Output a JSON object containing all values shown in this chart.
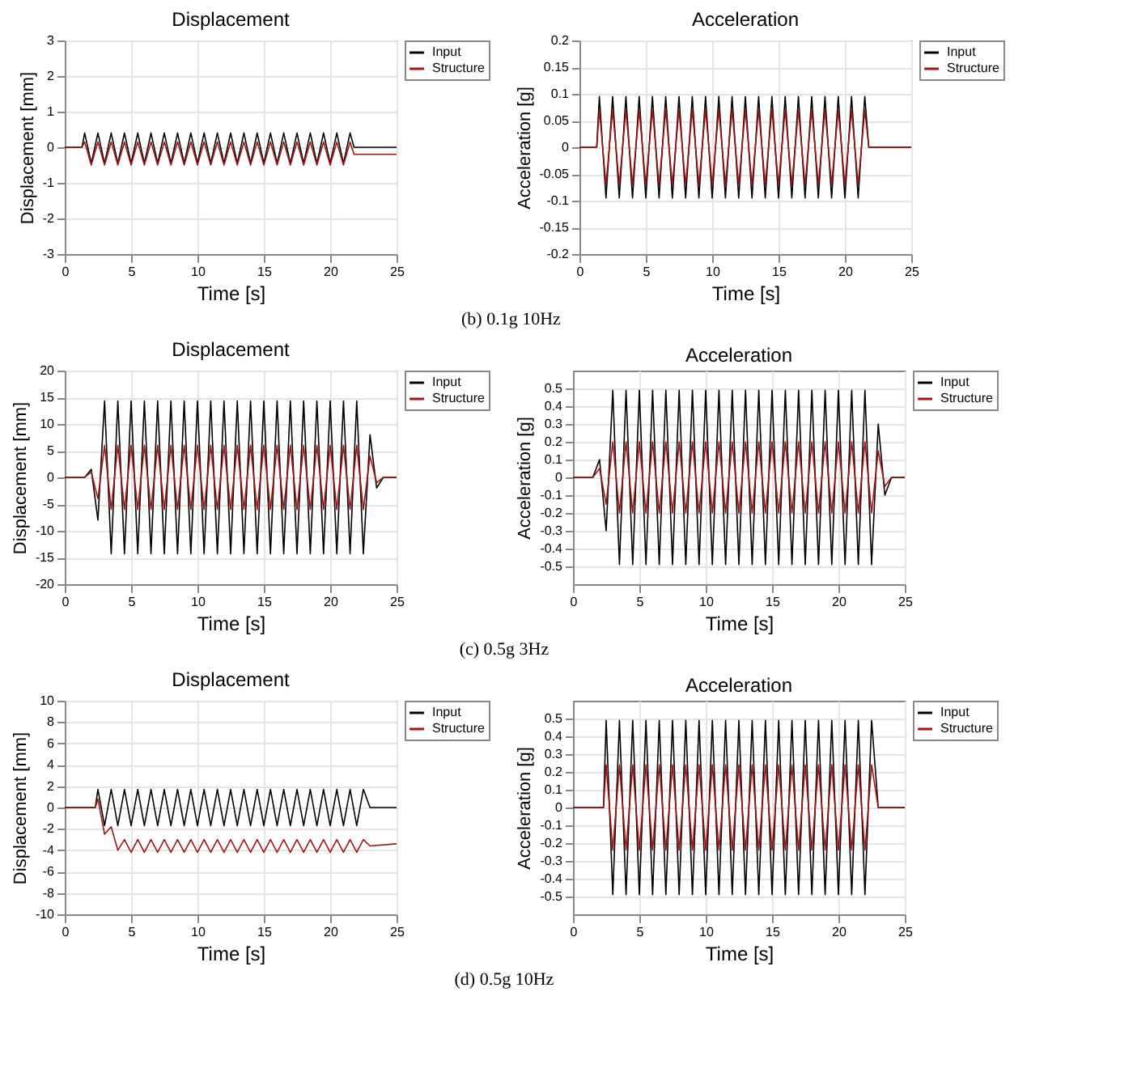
{
  "chart_data": [
    {
      "type": "line",
      "title": "Displacement",
      "xlabel": "Time [s]",
      "ylabel": "Displacement [mm]",
      "xlim": [
        0,
        25
      ],
      "xticks": [
        0,
        5,
        10,
        15,
        20,
        25
      ],
      "ylim": [
        -3,
        3
      ],
      "yticks": [
        -3,
        -2,
        -1,
        0,
        1,
        2,
        3
      ],
      "grid": true,
      "legend": "top right",
      "annotations": [
        "(b) 0.1g 10Hz"
      ],
      "x": [
        0,
        1.3,
        1.5,
        2,
        2.5,
        3,
        3.5,
        4,
        4.5,
        5,
        5.5,
        6,
        6.5,
        7,
        7.5,
        8,
        8.5,
        9,
        9.5,
        10,
        10.5,
        11,
        11.5,
        12,
        12.5,
        13,
        13.5,
        14,
        14.5,
        15,
        15.5,
        16,
        16.5,
        17,
        17.5,
        18,
        18.5,
        19,
        19.5,
        20,
        20.5,
        21,
        21.5,
        21.8,
        25
      ],
      "series": [
        {
          "name": "Input",
          "color": "#000000",
          "values": [
            0,
            0,
            0.4,
            -0.45,
            0.4,
            -0.45,
            0.4,
            -0.45,
            0.4,
            -0.45,
            0.4,
            -0.45,
            0.4,
            -0.45,
            0.4,
            -0.45,
            0.4,
            -0.45,
            0.4,
            -0.45,
            0.4,
            -0.45,
            0.4,
            -0.45,
            0.4,
            -0.45,
            0.4,
            -0.45,
            0.4,
            -0.45,
            0.4,
            -0.45,
            0.4,
            -0.45,
            0.4,
            -0.45,
            0.4,
            -0.45,
            0.4,
            -0.45,
            0.4,
            -0.45,
            0.4,
            0,
            0
          ]
        },
        {
          "name": "Structure",
          "color": "#a31515",
          "values": [
            0,
            0,
            0.15,
            -0.5,
            0.15,
            -0.5,
            0.15,
            -0.5,
            0.15,
            -0.5,
            0.15,
            -0.5,
            0.15,
            -0.5,
            0.15,
            -0.5,
            0.15,
            -0.5,
            0.15,
            -0.5,
            0.15,
            -0.5,
            0.15,
            -0.5,
            0.15,
            -0.5,
            0.15,
            -0.5,
            0.15,
            -0.5,
            0.15,
            -0.5,
            0.15,
            -0.5,
            0.15,
            -0.5,
            0.15,
            -0.5,
            0.15,
            -0.5,
            0.15,
            -0.5,
            0.15,
            -0.2,
            -0.2
          ]
        }
      ]
    },
    {
      "type": "line",
      "title": "Acceleration",
      "xlabel": "Time [s]",
      "ylabel": "Acceleration [g]",
      "xlim": [
        0,
        25
      ],
      "xticks": [
        0,
        5,
        10,
        15,
        20,
        25
      ],
      "ylim": [
        -0.2,
        0.2
      ],
      "yticks": [
        -0.2,
        -0.15,
        -0.1,
        -0.05,
        0,
        0.05,
        0.1,
        0.15,
        0.2
      ],
      "grid": true,
      "legend": "top right",
      "x": [
        0,
        1.3,
        1.5,
        2,
        2.5,
        3,
        3.5,
        4,
        4.5,
        5,
        5.5,
        6,
        6.5,
        7,
        7.5,
        8,
        8.5,
        9,
        9.5,
        10,
        10.5,
        11,
        11.5,
        12,
        12.5,
        13,
        13.5,
        14,
        14.5,
        15,
        15.5,
        16,
        16.5,
        17,
        17.5,
        18,
        18.5,
        19,
        19.5,
        20,
        20.5,
        21,
        21.5,
        21.8,
        25
      ],
      "series": [
        {
          "name": "Input",
          "color": "#000000",
          "values": [
            0,
            0,
            0.095,
            -0.095,
            0.095,
            -0.095,
            0.095,
            -0.095,
            0.095,
            -0.095,
            0.095,
            -0.095,
            0.095,
            -0.095,
            0.095,
            -0.095,
            0.095,
            -0.095,
            0.095,
            -0.095,
            0.095,
            -0.095,
            0.095,
            -0.095,
            0.095,
            -0.095,
            0.095,
            -0.095,
            0.095,
            -0.095,
            0.095,
            -0.095,
            0.095,
            -0.095,
            0.095,
            -0.095,
            0.095,
            -0.095,
            0.095,
            -0.095,
            0.095,
            -0.095,
            0.095,
            0,
            0
          ]
        },
        {
          "name": "Structure",
          "color": "#a31515",
          "values": [
            0,
            0,
            0.07,
            -0.07,
            0.07,
            -0.07,
            0.07,
            -0.07,
            0.07,
            -0.07,
            0.07,
            -0.07,
            0.07,
            -0.07,
            0.07,
            -0.07,
            0.07,
            -0.07,
            0.07,
            -0.07,
            0.07,
            -0.07,
            0.07,
            -0.07,
            0.07,
            -0.07,
            0.07,
            -0.07,
            0.07,
            -0.07,
            0.07,
            -0.07,
            0.07,
            -0.07,
            0.07,
            -0.07,
            0.07,
            -0.07,
            0.07,
            -0.07,
            0.07,
            -0.07,
            0.07,
            0,
            0
          ]
        }
      ]
    },
    {
      "type": "line",
      "title": "Displacement",
      "xlabel": "Time [s]",
      "ylabel": "Displacement [mm]",
      "xlim": [
        0,
        25
      ],
      "xticks": [
        0,
        5,
        10,
        15,
        20,
        25
      ],
      "ylim": [
        -20,
        20
      ],
      "yticks": [
        -20,
        -15,
        -10,
        -5,
        0,
        5,
        10,
        15,
        20
      ],
      "grid": true,
      "legend": "top right",
      "annotations": [
        "(c) 0.5g 3Hz"
      ],
      "x": [
        0,
        1.5,
        2,
        2.5,
        3,
        3.5,
        4,
        4.5,
        5,
        5.5,
        6,
        6.5,
        7,
        7.5,
        8,
        8.5,
        9,
        9.5,
        10,
        10.5,
        11,
        11.5,
        12,
        12.5,
        13,
        13.5,
        14,
        14.5,
        15,
        15.5,
        16,
        16.5,
        17,
        17.5,
        18,
        18.5,
        19,
        19.5,
        20,
        20.5,
        21,
        21.5,
        22,
        22.5,
        23,
        23.5,
        24,
        25
      ],
      "series": [
        {
          "name": "Input",
          "color": "#000000",
          "values": [
            0,
            0,
            1.5,
            -8,
            14.3,
            -14.3,
            14.3,
            -14.3,
            14.3,
            -14.3,
            14.3,
            -14.3,
            14.3,
            -14.3,
            14.3,
            -14.3,
            14.3,
            -14.3,
            14.3,
            -14.3,
            14.3,
            -14.3,
            14.3,
            -14.3,
            14.3,
            -14.3,
            14.3,
            -14.3,
            14.3,
            -14.3,
            14.3,
            -14.3,
            14.3,
            -14.3,
            14.3,
            -14.3,
            14.3,
            -14.3,
            14.3,
            -14.3,
            14.3,
            -14.3,
            14.3,
            -14.3,
            8,
            -2,
            0,
            0
          ]
        },
        {
          "name": "Structure",
          "color": "#a31515",
          "values": [
            0,
            0,
            1,
            -4,
            6,
            -6,
            6,
            -6,
            6,
            -6,
            6,
            -6,
            6,
            -6,
            6,
            -6,
            6,
            -6,
            6,
            -6,
            6,
            -6,
            6,
            -6,
            6,
            -6,
            6,
            -6,
            6,
            -6,
            6,
            -6,
            6,
            -6,
            6,
            -6,
            6,
            -6,
            6,
            -6,
            6,
            -6,
            6,
            -6,
            4,
            -1,
            0,
            0
          ]
        }
      ]
    },
    {
      "type": "line",
      "title": "Acceleration",
      "xlabel": "Time [s]",
      "ylabel": "Acceleration [g]",
      "xlim": [
        0,
        25
      ],
      "xticks": [
        0,
        5,
        10,
        15,
        20,
        25
      ],
      "ylim": [
        -0.6,
        0.6
      ],
      "yticks": [
        -0.5,
        -0.4,
        -0.3,
        -0.2,
        -0.1,
        0,
        0.1,
        0.2,
        0.3,
        0.4,
        0.5
      ],
      "grid": true,
      "legend": "top right",
      "x": [
        0,
        1.5,
        2,
        2.5,
        3,
        3.5,
        4,
        4.5,
        5,
        5.5,
        6,
        6.5,
        7,
        7.5,
        8,
        8.5,
        9,
        9.5,
        10,
        10.5,
        11,
        11.5,
        12,
        12.5,
        13,
        13.5,
        14,
        14.5,
        15,
        15.5,
        16,
        16.5,
        17,
        17.5,
        18,
        18.5,
        19,
        19.5,
        20,
        20.5,
        21,
        21.5,
        22,
        22.5,
        23,
        23.5,
        24,
        25
      ],
      "series": [
        {
          "name": "Input",
          "color": "#000000",
          "values": [
            0,
            0,
            0.1,
            -0.3,
            0.49,
            -0.49,
            0.49,
            -0.49,
            0.49,
            -0.49,
            0.49,
            -0.49,
            0.49,
            -0.49,
            0.49,
            -0.49,
            0.49,
            -0.49,
            0.49,
            -0.49,
            0.49,
            -0.49,
            0.49,
            -0.49,
            0.49,
            -0.49,
            0.49,
            -0.49,
            0.49,
            -0.49,
            0.49,
            -0.49,
            0.49,
            -0.49,
            0.49,
            -0.49,
            0.49,
            -0.49,
            0.49,
            -0.49,
            0.49,
            -0.49,
            0.49,
            -0.49,
            0.3,
            -0.1,
            0,
            0
          ]
        },
        {
          "name": "Structure",
          "color": "#a31515",
          "values": [
            0,
            0,
            0.05,
            -0.15,
            0.2,
            -0.2,
            0.2,
            -0.2,
            0.2,
            -0.2,
            0.2,
            -0.2,
            0.2,
            -0.2,
            0.2,
            -0.2,
            0.2,
            -0.2,
            0.2,
            -0.2,
            0.2,
            -0.2,
            0.2,
            -0.2,
            0.2,
            -0.2,
            0.2,
            -0.2,
            0.2,
            -0.2,
            0.2,
            -0.2,
            0.2,
            -0.2,
            0.2,
            -0.2,
            0.2,
            -0.2,
            0.2,
            -0.2,
            0.2,
            -0.2,
            0.2,
            -0.2,
            0.15,
            -0.05,
            0,
            0
          ]
        }
      ]
    },
    {
      "type": "line",
      "title": "Displacement",
      "xlabel": "Time [s]",
      "ylabel": "Displacement [mm]",
      "xlim": [
        0,
        25
      ],
      "xticks": [
        0,
        5,
        10,
        15,
        20,
        25
      ],
      "ylim": [
        -10,
        10
      ],
      "yticks": [
        -10,
        -8,
        -6,
        -4,
        -2,
        0,
        2,
        4,
        6,
        8,
        10
      ],
      "grid": true,
      "legend": "top right",
      "annotations": [
        "(d) 0.5g 10Hz"
      ],
      "x": [
        0,
        2.3,
        2.5,
        3,
        3.5,
        4,
        4.5,
        5,
        5.5,
        6,
        6.5,
        7,
        7.5,
        8,
        8.5,
        9,
        9.5,
        10,
        10.5,
        11,
        11.5,
        12,
        12.5,
        13,
        13.5,
        14,
        14.5,
        15,
        15.5,
        16,
        16.5,
        17,
        17.5,
        18,
        18.5,
        19,
        19.5,
        20,
        20.5,
        21,
        21.5,
        22,
        22.5,
        23,
        25
      ],
      "series": [
        {
          "name": "Input",
          "color": "#000000",
          "values": [
            0,
            0,
            1.7,
            -1.7,
            1.7,
            -1.7,
            1.7,
            -1.7,
            1.7,
            -1.7,
            1.7,
            -1.7,
            1.7,
            -1.7,
            1.7,
            -1.7,
            1.7,
            -1.7,
            1.7,
            -1.7,
            1.7,
            -1.7,
            1.7,
            -1.7,
            1.7,
            -1.7,
            1.7,
            -1.7,
            1.7,
            -1.7,
            1.7,
            -1.7,
            1.7,
            -1.7,
            1.7,
            -1.7,
            1.7,
            -1.7,
            1.7,
            -1.7,
            1.7,
            -1.7,
            1.7,
            0,
            0
          ]
        },
        {
          "name": "Structure",
          "color": "#a31515",
          "values": [
            0,
            0,
            0.8,
            -2.5,
            -1.8,
            -4,
            -3,
            -4.2,
            -3,
            -4.2,
            -3,
            -4.2,
            -3,
            -4.2,
            -3,
            -4.2,
            -3,
            -4.2,
            -3,
            -4.2,
            -3,
            -4.2,
            -3,
            -4.2,
            -3,
            -4.2,
            -3,
            -4.2,
            -3,
            -4.2,
            -3,
            -4.2,
            -3,
            -4.2,
            -3,
            -4.2,
            -3,
            -4.2,
            -3,
            -4.2,
            -3,
            -4.2,
            -3,
            -3.6,
            -3.4
          ]
        }
      ]
    },
    {
      "type": "line",
      "title": "Acceleration",
      "xlabel": "Time [s]",
      "ylabel": "Acceleration [g]",
      "xlim": [
        0,
        25
      ],
      "xticks": [
        0,
        5,
        10,
        15,
        20,
        25
      ],
      "ylim": [
        -0.6,
        0.6
      ],
      "yticks": [
        -0.5,
        -0.4,
        -0.3,
        -0.2,
        -0.1,
        0,
        0.1,
        0.2,
        0.3,
        0.4,
        0.5
      ],
      "grid": true,
      "legend": "top right",
      "x": [
        0,
        2.3,
        2.5,
        3,
        3.5,
        4,
        4.5,
        5,
        5.5,
        6,
        6.5,
        7,
        7.5,
        8,
        8.5,
        9,
        9.5,
        10,
        10.5,
        11,
        11.5,
        12,
        12.5,
        13,
        13.5,
        14,
        14.5,
        15,
        15.5,
        16,
        16.5,
        17,
        17.5,
        18,
        18.5,
        19,
        19.5,
        20,
        20.5,
        21,
        21.5,
        22,
        22.5,
        23,
        25
      ],
      "series": [
        {
          "name": "Input",
          "color": "#000000",
          "values": [
            0,
            0,
            0.49,
            -0.49,
            0.49,
            -0.49,
            0.49,
            -0.49,
            0.49,
            -0.49,
            0.49,
            -0.49,
            0.49,
            -0.49,
            0.49,
            -0.49,
            0.49,
            -0.49,
            0.49,
            -0.49,
            0.49,
            -0.49,
            0.49,
            -0.49,
            0.49,
            -0.49,
            0.49,
            -0.49,
            0.49,
            -0.49,
            0.49,
            -0.49,
            0.49,
            -0.49,
            0.49,
            -0.49,
            0.49,
            -0.49,
            0.49,
            -0.49,
            0.49,
            -0.49,
            0.49,
            0,
            0
          ]
        },
        {
          "name": "Structure",
          "color": "#a31515",
          "values": [
            0,
            0,
            0.24,
            -0.24,
            0.24,
            -0.24,
            0.24,
            -0.24,
            0.24,
            -0.24,
            0.24,
            -0.24,
            0.24,
            -0.24,
            0.24,
            -0.24,
            0.24,
            -0.24,
            0.24,
            -0.24,
            0.24,
            -0.24,
            0.24,
            -0.24,
            0.24,
            -0.24,
            0.24,
            -0.24,
            0.24,
            -0.24,
            0.24,
            -0.24,
            0.24,
            -0.24,
            0.24,
            -0.24,
            0.24,
            -0.24,
            0.24,
            -0.24,
            0.24,
            -0.24,
            0.24,
            0,
            0
          ]
        }
      ]
    }
  ]
}
